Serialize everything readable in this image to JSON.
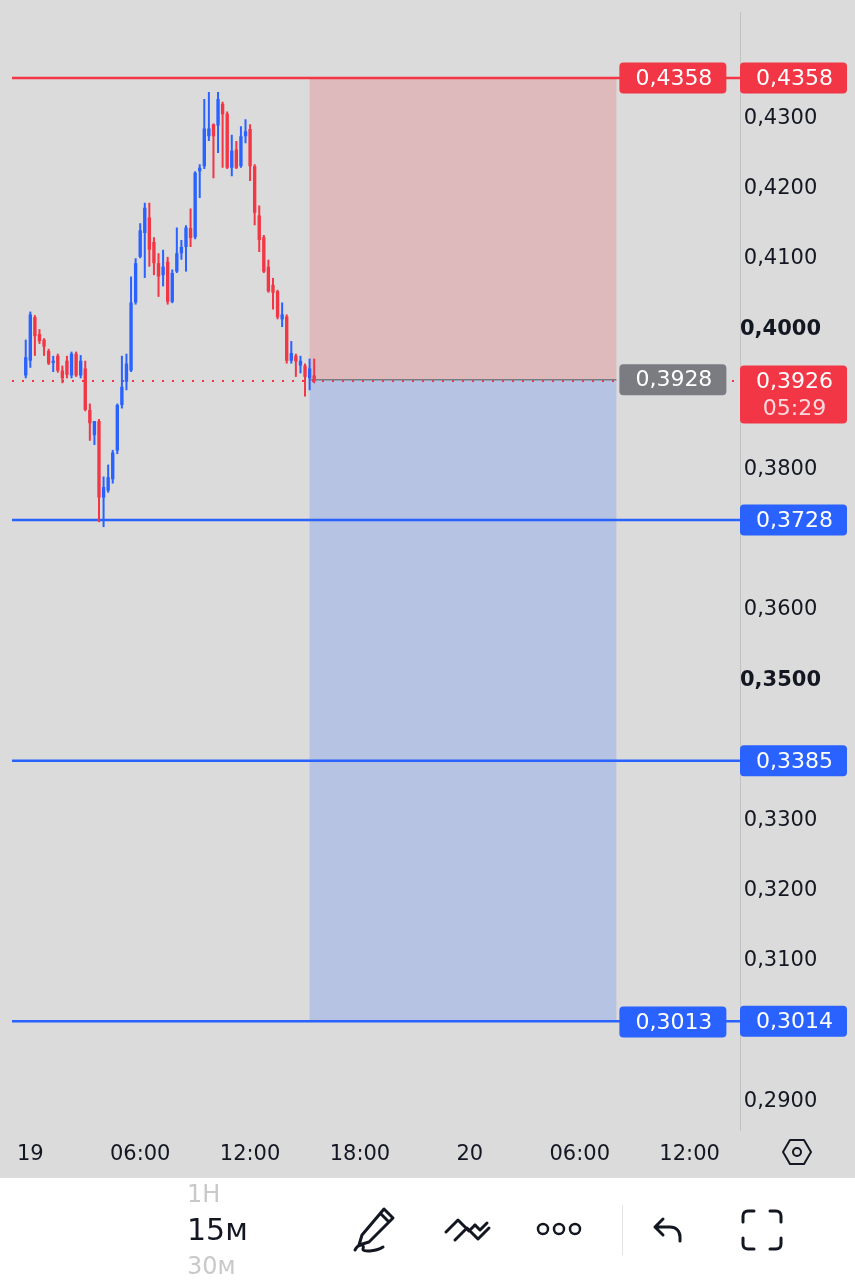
{
  "chart_data": {
    "type": "candlestick",
    "categories": [
      null,
      null,
      null,
      null,
      "19",
      null,
      null,
      null,
      null,
      null,
      null,
      null,
      null,
      null,
      null,
      null,
      null,
      null,
      null,
      null,
      null,
      null,
      null,
      null,
      null,
      null,
      null,
      null,
      "06:00",
      null,
      null,
      null,
      null,
      null,
      null,
      null,
      null,
      null,
      null,
      null,
      null,
      null,
      null,
      null,
      null,
      null,
      null,
      null,
      null,
      null,
      null,
      null,
      "12:00",
      null,
      null,
      null,
      null,
      null,
      null,
      null,
      null,
      null,
      null,
      null,
      null,
      null,
      null,
      null,
      null,
      null,
      null,
      null,
      null,
      null,
      null,
      null,
      "18:00",
      null,
      null,
      null,
      null,
      null,
      null,
      null,
      null,
      null,
      null,
      null,
      null,
      null,
      null,
      null,
      null,
      null,
      null,
      null,
      null,
      null,
      null,
      null,
      "20",
      null,
      null,
      null,
      null,
      null,
      null,
      null,
      null,
      null,
      null,
      null,
      null,
      null,
      null,
      null,
      null,
      null,
      null,
      null,
      null,
      null,
      null,
      null,
      "06:00",
      null,
      null,
      null,
      null,
      null,
      null,
      null,
      null,
      null,
      null,
      null,
      null,
      null,
      null,
      null,
      null,
      null,
      null,
      null,
      null,
      null,
      null,
      null,
      "12:00",
      null,
      null,
      null,
      null,
      null,
      null,
      null,
      null,
      null,
      null,
      null
    ],
    "ohlc": [
      null,
      null,
      null,
      [
        0.3934,
        0.3985,
        0.393,
        0.396
      ],
      [
        0.3955,
        0.4025,
        0.3945,
        0.4021
      ],
      [
        0.4017,
        0.402,
        0.3962,
        0.399
      ],
      [
        0.3993,
        0.4,
        0.3979,
        0.3983
      ],
      [
        0.3985,
        0.3987,
        0.3962,
        0.3975
      ],
      [
        0.3969,
        0.3972,
        0.3949,
        0.3951
      ],
      [
        0.3952,
        0.3962,
        0.3939,
        0.3955
      ],
      [
        0.3962,
        0.3965,
        0.3938,
        0.3941
      ],
      [
        0.3941,
        0.3948,
        0.3923,
        0.393
      ],
      [
        0.3955,
        0.3962,
        0.393,
        0.3935
      ],
      [
        0.3934,
        0.3968,
        0.393,
        0.3965
      ],
      [
        0.3965,
        0.3968,
        0.3932,
        0.3934
      ],
      [
        0.3934,
        0.3963,
        0.393,
        0.3955
      ],
      [
        0.3944,
        0.3955,
        0.3883,
        0.3885
      ],
      [
        0.3885,
        0.3894,
        0.3841,
        0.3866
      ],
      [
        0.3849,
        0.3869,
        0.3835,
        0.3869
      ],
      [
        0.3869,
        0.3872,
        0.3725,
        0.376
      ],
      [
        0.376,
        0.379,
        0.3718,
        0.3775
      ],
      [
        0.377,
        0.3807,
        0.3767,
        0.3789
      ],
      [
        0.3786,
        0.3828,
        0.378,
        0.3824
      ],
      [
        0.3827,
        0.3894,
        0.3822,
        0.3892
      ],
      [
        0.3892,
        0.3962,
        0.3887,
        0.3918
      ],
      [
        0.3925,
        0.3965,
        0.3913,
        0.3951
      ],
      [
        0.3941,
        0.4075,
        0.3939,
        0.4038
      ],
      [
        0.4038,
        0.4101,
        0.4035,
        0.4094
      ],
      [
        0.4103,
        0.4151,
        0.4101,
        0.4141
      ],
      [
        0.4137,
        0.418,
        0.4073,
        0.4173
      ],
      [
        0.4159,
        0.418,
        0.4089,
        0.4113
      ],
      [
        0.4124,
        0.4131,
        0.4077,
        0.4094
      ],
      [
        0.4094,
        0.4108,
        0.4046,
        0.4075
      ],
      [
        0.4077,
        0.4113,
        0.4061,
        0.4089
      ],
      [
        0.4096,
        0.4103,
        0.4035,
        0.4039
      ],
      [
        0.4039,
        0.4085,
        0.4037,
        0.408
      ],
      [
        0.4082,
        0.4145,
        0.408,
        0.4108
      ],
      [
        0.4108,
        0.4127,
        0.4099,
        0.4117
      ],
      [
        0.4117,
        0.4148,
        0.4082,
        0.4145
      ],
      [
        0.4144,
        0.4172,
        0.4117,
        0.413
      ],
      [
        0.4131,
        0.4225,
        0.4128,
        0.4223
      ],
      [
        0.4225,
        0.4235,
        0.4187,
        0.423
      ],
      [
        0.4232,
        0.4328,
        0.4228,
        0.4286
      ],
      [
        0.4275,
        0.4338,
        0.4268,
        0.4286
      ],
      [
        0.4292,
        0.4293,
        0.4215,
        0.4275
      ],
      [
        0.429,
        0.4338,
        0.4251,
        0.4328
      ],
      [
        0.4321,
        0.4324,
        0.423,
        0.4306
      ],
      [
        0.4307,
        0.431,
        0.4228,
        0.423
      ],
      [
        0.423,
        0.4277,
        0.4218,
        0.4254
      ],
      [
        0.4256,
        0.4268,
        0.4228,
        0.423
      ],
      [
        0.4232,
        0.4289,
        0.423,
        0.4275
      ],
      [
        0.4275,
        0.4299,
        0.4265,
        0.4282
      ],
      [
        0.4285,
        0.4292,
        0.4211,
        0.4232
      ],
      [
        0.4232,
        0.4235,
        0.4148,
        0.4166
      ],
      [
        0.4162,
        0.4176,
        0.411,
        0.4127
      ],
      [
        0.4131,
        0.4134,
        0.408,
        0.4082
      ],
      [
        0.4089,
        0.4099,
        0.4052,
        0.4054
      ],
      [
        0.4063,
        0.4073,
        0.4028,
        0.4052
      ],
      [
        0.4054,
        0.4056,
        0.4014,
        0.4017
      ],
      [
        0.4014,
        0.4038,
        0.4003,
        0.4021
      ],
      [
        0.4018,
        0.4021,
        0.3951,
        0.3955
      ],
      [
        0.3955,
        0.3983,
        0.3951,
        0.3966
      ],
      [
        0.3962,
        0.3965,
        0.3932,
        0.3954
      ],
      [
        0.3948,
        0.3962,
        0.3937,
        0.3955
      ],
      [
        0.3948,
        0.3951,
        0.3904,
        0.3932
      ],
      [
        0.393,
        0.3958,
        0.3913,
        0.3944
      ],
      [
        0.3934,
        0.3958,
        0.3923,
        0.3926
      ],
      null,
      null,
      null,
      null,
      null,
      null,
      null,
      null,
      null,
      null,
      null,
      null,
      null,
      null,
      null,
      null,
      null,
      null,
      null,
      null,
      null,
      null,
      null,
      null,
      null,
      null,
      null,
      null,
      null,
      null,
      null,
      null,
      null,
      null,
      null,
      null,
      null,
      null,
      null,
      null,
      null,
      null,
      null,
      null,
      null,
      null,
      null,
      null,
      null,
      null,
      null,
      null,
      null,
      null,
      null,
      null,
      null,
      null,
      null,
      null,
      null,
      null,
      null,
      null,
      null,
      null,
      null,
      null,
      null,
      null,
      null,
      null,
      null,
      null,
      null,
      null,
      null,
      null,
      null,
      null,
      null,
      null,
      null,
      null,
      null,
      null,
      null,
      null,
      null,
      null,
      null,
      null,
      null
    ],
    "colors": [
      null,
      null,
      null,
      "#2962ff",
      "#2962ff",
      "#f23645",
      "#f23645",
      "#f23645",
      "#f23645",
      "#2962ff",
      "#f23645",
      "#f23645",
      "#f23645",
      "#2962ff",
      "#f23645",
      "#2962ff",
      "#f23645",
      "#f23645",
      "#2962ff",
      "#f23645",
      "#2962ff",
      "#2962ff",
      "#2962ff",
      "#2962ff",
      "#2962ff",
      "#2962ff",
      "#2962ff",
      "#2962ff",
      "#2962ff",
      "#2962ff",
      "#f23645",
      "#f23645",
      "#f23645",
      "#2962ff",
      "#f23645",
      "#2962ff",
      "#2962ff",
      "#2962ff",
      "#2962ff",
      "#f23645",
      "#2962ff",
      "#2962ff",
      "#2962ff",
      "#2962ff",
      "#f23645",
      "#2962ff",
      "#f23645",
      "#f23645",
      "#2962ff",
      "#f23645",
      "#2962ff",
      "#2962ff",
      "#f23645",
      "#f23645",
      "#f23645",
      "#f23645",
      "#f23645",
      "#f23645",
      "#f23645",
      "#2962ff",
      "#f23645",
      "#2962ff",
      "#f23645",
      "#2962ff",
      "#f23645",
      "#2962ff",
      "#f23645",
      null,
      null,
      null,
      null,
      null,
      null,
      null,
      null,
      null,
      null,
      null,
      null,
      null,
      null,
      null,
      null,
      null,
      null,
      null,
      null,
      null,
      null,
      null,
      null,
      null,
      null,
      null,
      null,
      null,
      null,
      null,
      null,
      null,
      null,
      null,
      null,
      null,
      null,
      null,
      null,
      null,
      null,
      null,
      null,
      null,
      null,
      null,
      null,
      null,
      null,
      null,
      null,
      null,
      null,
      null,
      null,
      null,
      null,
      null,
      null,
      null,
      null,
      null,
      null,
      null,
      null,
      null,
      null,
      null,
      null,
      null,
      null,
      null,
      null,
      null,
      null,
      null,
      null,
      null,
      null,
      null,
      null,
      null,
      null,
      null,
      null,
      null,
      null,
      null,
      null,
      null,
      null,
      null
    ],
    "series": [
      {
        "type": "line",
        "color": "#7b7b82",
        "values": [
          null,
          null,
          null,
          null,
          null,
          null,
          null,
          null,
          null,
          null,
          null,
          null,
          null,
          null,
          null,
          null,
          null,
          null,
          null,
          null,
          null,
          null,
          null,
          null,
          null,
          null,
          null,
          null,
          null,
          null,
          null,
          null,
          null,
          null,
          null,
          null,
          null,
          null,
          null,
          null,
          null,
          null,
          null,
          null,
          null,
          null,
          null,
          null,
          null,
          null,
          null,
          null,
          null,
          null,
          null,
          null,
          null,
          null,
          null,
          null,
          null,
          null,
          null,
          null,
          null,
          0.3928,
          0.3928,
          0.3928,
          0.3928,
          0.3928,
          0.3928,
          0.3928,
          0.3928,
          0.3928,
          0.3928,
          0.3928,
          0.3928,
          0.3928,
          0.3928,
          0.3928,
          0.3928,
          0.3928,
          0.3928,
          0.3928,
          0.3928,
          0.3928,
          0.3928,
          0.3928,
          0.3928,
          0.3928,
          0.3928,
          0.3928,
          0.3928,
          0.3928,
          0.3928,
          0.3928,
          0.3928,
          0.3928,
          0.3928,
          0.3928,
          0.3928,
          0.3928,
          0.3928,
          0.3928,
          0.3928,
          0.3928,
          0.3928,
          0.3928,
          0.3928,
          0.3928,
          0.3928,
          0.3928,
          0.3928,
          0.3928,
          0.3928,
          0.3928,
          0.3928,
          0.3928,
          0.3928,
          0.3928,
          0.3928,
          0.3928,
          0.3928,
          0.3928,
          0.3928,
          0.3928,
          0.3928,
          0.3928,
          0.3928,
          0.3928,
          0.3928,
          0.3928,
          0.3928,
          null,
          null,
          null,
          null,
          null,
          null,
          null,
          null,
          null,
          null,
          null,
          null,
          null,
          null,
          null,
          null,
          null,
          null,
          null,
          null,
          null,
          null,
          null,
          null,
          null,
          null,
          null
        ],
        "value_labels": [
          null,
          null,
          null,
          null,
          null,
          null,
          null,
          null,
          null,
          null,
          null,
          null,
          null,
          null,
          null,
          null,
          null,
          null,
          null,
          null,
          null,
          null,
          null,
          null,
          null,
          null,
          null,
          null,
          null,
          null,
          null,
          null,
          null,
          null,
          null,
          null,
          null,
          null,
          null,
          null,
          null,
          null,
          null,
          null,
          null,
          null,
          null,
          null,
          null,
          null,
          null,
          null,
          null,
          null,
          null,
          null,
          null,
          null,
          null,
          null,
          null,
          null,
          null,
          null,
          null,
          null,
          null,
          null,
          null,
          null,
          null,
          null,
          null,
          null,
          null,
          null,
          null,
          null,
          null,
          null,
          null,
          null,
          null,
          null,
          null,
          null,
          null,
          null,
          null,
          null,
          null,
          null,
          null,
          null,
          null,
          null,
          null,
          null,
          null,
          null,
          null,
          null,
          null,
          null,
          null,
          null,
          null,
          null,
          null,
          null,
          null,
          null,
          null,
          null,
          null,
          null,
          null,
          null,
          null,
          null,
          null,
          null,
          null,
          null,
          null,
          null,
          null,
          null,
          null,
          null,
          null,
          null,
          "0,3928",
          null,
          null,
          null,
          null,
          null,
          null,
          null,
          null,
          null,
          null,
          null,
          null,
          null,
          null,
          null,
          null,
          null,
          null,
          null,
          null,
          null,
          null,
          null,
          null,
          null,
          null,
          null
        ]
      }
    ],
    "bands": [
      {
        "axis": "y",
        "from": 0.3928,
        "to": 0.4358,
        "color": "#f23645",
        "label": "0,4358"
      },
      {
        "axis": "y",
        "from": 0.3928,
        "to": 0.3013,
        "color": "#2962ff",
        "label": "0,3013"
      }
    ],
    "ylim": [
      0.2859,
      0.4451
    ],
    "yticks": [
      {
        "value": 0.29,
        "label": "0,2900"
      },
      {
        "value": 0.31,
        "label": "0,3100"
      },
      {
        "value": 0.32,
        "label": "0,3200"
      },
      {
        "value": 0.33,
        "label": "0,3300"
      },
      {
        "value": 0.35,
        "label": "0,3500"
      },
      {
        "value": 0.36,
        "label": "0,3600"
      },
      {
        "value": 0.38,
        "label": "0,3800"
      },
      {
        "value": 0.4,
        "label": "0,4000"
      },
      {
        "value": 0.41,
        "label": "0,4100"
      },
      {
        "value": 0.42,
        "label": "0,4200"
      },
      {
        "value": 0.43,
        "label": "0,4300"
      }
    ],
    "ref_lines": [
      {
        "axis": "y",
        "value": 0.4358,
        "label": "0,4358",
        "color": "#f23645"
      },
      {
        "axis": "y",
        "value": 0.3926,
        "label": "0,3926\n05:29",
        "color": "#f23645",
        "line_style": "dotted"
      },
      {
        "axis": "y",
        "value": 0.3728,
        "label": "0,3728",
        "color": "#2962ff"
      },
      {
        "axis": "y",
        "value": 0.3385,
        "label": "0,3385",
        "color": "#2962ff"
      },
      {
        "axis": "y",
        "value": 0.3014,
        "label": "0,3014",
        "color": "#2962ff"
      }
    ],
    "annotations": [
      "1H",
      "15м",
      "30м"
    ]
  }
}
